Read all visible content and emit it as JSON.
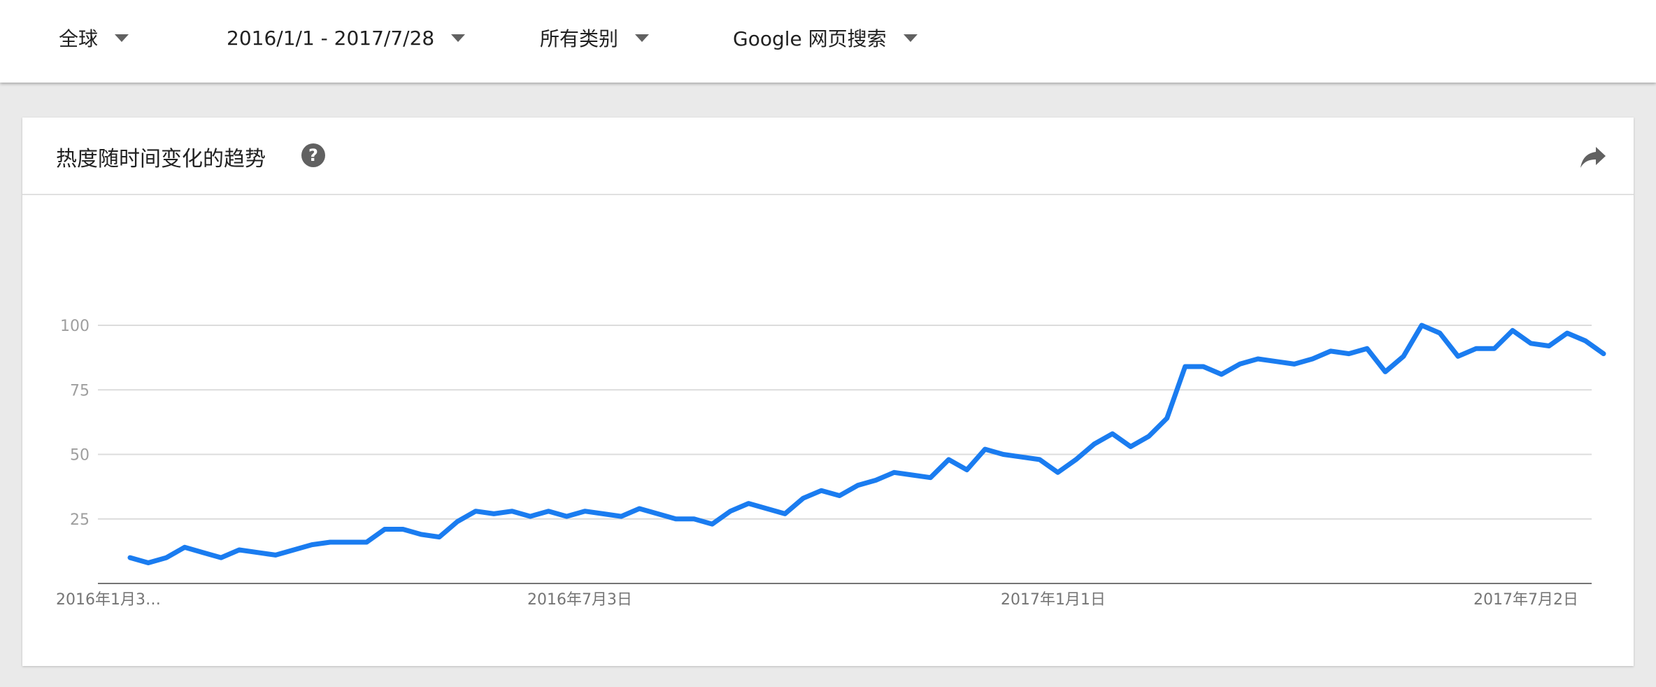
{
  "toolbar": {
    "region": "全球",
    "date_range": "2016/1/1 - 2017/7/28",
    "category": "所有类别",
    "search_type": "Google 网页搜索"
  },
  "card": {
    "title": "热度随时间变化的趋势"
  },
  "icons": {
    "help": "help-icon",
    "share": "share-icon",
    "dropdown": "caret-down-icon"
  },
  "colors": {
    "line": "#1a7cf0",
    "grid": "#dcdcdc",
    "axis": "#757575",
    "tick_label": "#9e9e9e",
    "x_label": "#757575"
  },
  "chart_data": {
    "type": "line",
    "title": "",
    "xlabel": "",
    "ylabel": "",
    "ylim": [
      0,
      100
    ],
    "y_ticks": [
      25,
      50,
      75,
      100
    ],
    "x_tick_labels": [
      "2016年1月3…",
      "2016年7月3日",
      "2017年1月1日",
      "2017年7月2日"
    ],
    "x_tick_indices": [
      0,
      26,
      52,
      78
    ],
    "grid": true,
    "legend": "none",
    "series": [
      {
        "values": [
          10,
          8,
          10,
          14,
          12,
          10,
          13,
          12,
          11,
          13,
          15,
          16,
          16,
          16,
          21,
          21,
          19,
          18,
          24,
          28,
          27,
          28,
          26,
          28,
          26,
          28,
          27,
          26,
          29,
          27,
          25,
          25,
          23,
          28,
          31,
          29,
          27,
          33,
          36,
          34,
          38,
          40,
          43,
          42,
          41,
          48,
          44,
          52,
          50,
          49,
          48,
          43,
          48,
          54,
          58,
          53,
          57,
          64,
          84,
          84,
          81,
          85,
          87,
          86,
          85,
          87,
          90,
          89,
          91,
          82,
          88,
          100,
          97,
          88,
          91,
          91,
          98,
          93,
          92,
          97,
          94,
          89
        ]
      }
    ]
  }
}
